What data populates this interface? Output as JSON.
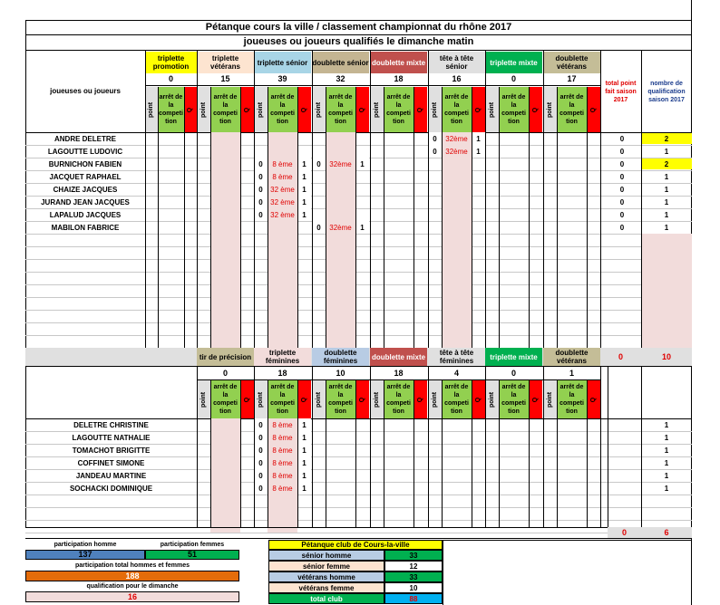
{
  "title": "Pétanque cours la ville / classement championnat du rhône 2017",
  "subtitle": "joueuses ou joueurs qualifiés le dimanche matin",
  "colors": {
    "yellow": "#ffff00",
    "peach": "#fde4d0",
    "lightblue": "#a8d5e6",
    "tan": "#c4b592",
    "brownred": "#c0504d",
    "lightgray": "#e0e0e0",
    "green": "#00b050",
    "khaki": "#c4bd97",
    "pink": "#f2dcdb",
    "limegreen": "#92d050",
    "red": "#ff0000",
    "orange": "#f79646",
    "lavender": "#b8cce4",
    "cyan": "#00b0f0",
    "blue": "#4f81bd",
    "darkorange": "#e46c0a"
  },
  "men": {
    "player_header": "joueuses ou joueurs",
    "categories": [
      {
        "name": "triplette promotion",
        "count": "0"
      },
      {
        "name": "triplette vétérans",
        "count": "15"
      },
      {
        "name": "triplette sénior",
        "count": "39"
      },
      {
        "name": "doublette sénior",
        "count": "32"
      },
      {
        "name": "doublette mixte",
        "count": "18"
      },
      {
        "name": "tête à tête sénior",
        "count": "16"
      },
      {
        "name": "triplette mixte",
        "count": "0"
      },
      {
        "name": "doublette vétérans",
        "count": "17"
      }
    ],
    "sub": {
      "point": "point",
      "arret": "arrêt de la competi tion",
      "q": "Q"
    },
    "total_header": "total point fait saison 2017",
    "qual_header": "nombre de qualification saison 2017",
    "rows": [
      {
        "name": "ANDRE DELETRE",
        "total": "0",
        "qual": "2"
      },
      {
        "name": "LAGOUTTE LUDOVIC",
        "total": "0",
        "qual": "1"
      },
      {
        "name": "BURNICHON FABIEN",
        "total": "0",
        "qual": "2"
      },
      {
        "name": "JACQUET RAPHAEL",
        "total": "0",
        "qual": "1"
      },
      {
        "name": "CHAIZE JACQUES",
        "total": "0",
        "qual": "1"
      },
      {
        "name": "JURAND JEAN JACQUES",
        "total": "0",
        "qual": "1"
      },
      {
        "name": "LAPALUD JACQUES",
        "total": "0",
        "qual": "1"
      },
      {
        "name": "MABILON FABRICE",
        "total": "0",
        "qual": "1"
      }
    ],
    "entries": [
      {
        "row": 0,
        "cat": 5,
        "point": "0",
        "arret": "32ème",
        "q": "1"
      },
      {
        "row": 1,
        "cat": 5,
        "point": "0",
        "arret": "32ème",
        "q": "1"
      },
      {
        "row": 2,
        "cat": 2,
        "point": "0",
        "arret": "8 ème",
        "q": "1"
      },
      {
        "row": 2,
        "cat": 3,
        "point": "0",
        "arret": "32ème",
        "q": "1"
      },
      {
        "row": 3,
        "cat": 2,
        "point": "0",
        "arret": "8 ème",
        "q": "1"
      },
      {
        "row": 4,
        "cat": 2,
        "point": "0",
        "arret": "32 ème",
        "q": "1"
      },
      {
        "row": 5,
        "cat": 2,
        "point": "0",
        "arret": "32 ème",
        "q": "1"
      },
      {
        "row": 6,
        "cat": 2,
        "point": "0",
        "arret": "32 ème",
        "q": "1"
      },
      {
        "row": 7,
        "cat": 3,
        "point": "0",
        "arret": "32ème",
        "q": "1"
      }
    ],
    "sum_total": "0",
    "sum_qual": "10"
  },
  "women": {
    "categories": [
      {
        "name": "tir de précision",
        "count": "0"
      },
      {
        "name": "triplette féminines",
        "count": "18"
      },
      {
        "name": "doublette féminines",
        "count": "10"
      },
      {
        "name": "doublette mixte",
        "count": "18"
      },
      {
        "name": "tête à tête féminines",
        "count": "4"
      },
      {
        "name": "triplette mixte",
        "count": "0"
      },
      {
        "name": "doublette vétérans",
        "count": "1"
      }
    ],
    "rows": [
      {
        "name": "DELETRE CHRISTINE",
        "qual": "1"
      },
      {
        "name": "LAGOUTTE NATHALIE",
        "qual": "1"
      },
      {
        "name": "TOMACHOT BRIGITTE",
        "qual": "1"
      },
      {
        "name": "COFFINET SIMONE",
        "qual": "1"
      },
      {
        "name": "JANDEAU MARTINE",
        "qual": "1"
      },
      {
        "name": "SOCHACKI DOMINIQUE",
        "qual": "1"
      }
    ],
    "entries": [
      {
        "row": 0,
        "cat": 1,
        "point": "0",
        "arret": "8 ème",
        "q": "1"
      },
      {
        "row": 1,
        "cat": 1,
        "point": "0",
        "arret": "8 ème",
        "q": "1"
      },
      {
        "row": 2,
        "cat": 1,
        "point": "0",
        "arret": "8 ème",
        "q": "1"
      },
      {
        "row": 3,
        "cat": 1,
        "point": "0",
        "arret": "8 ème",
        "q": "1"
      },
      {
        "row": 4,
        "cat": 1,
        "point": "0",
        "arret": "8 ème",
        "q": "1"
      },
      {
        "row": 5,
        "cat": 1,
        "point": "0",
        "arret": "8 ème",
        "q": "1"
      }
    ],
    "sum_total": "0",
    "sum_qual": "6"
  },
  "summary": {
    "participation_homme_label": "participation homme",
    "participation_homme": "137",
    "participation_femmes_label": "participation femmes",
    "participation_femmes": "51",
    "total_label": "participation total hommes et femmes",
    "total": "188",
    "qualif_label": "qualification pour le dimanche",
    "qualif": "16"
  },
  "club": {
    "title": "Pétanque club de Cours-la-ville",
    "rows": [
      {
        "label": "sénior homme",
        "value": "33"
      },
      {
        "label": "sénior femme",
        "value": "12"
      },
      {
        "label": "vétérans homme",
        "value": "33"
      },
      {
        "label": "vétérans femme",
        "value": "10"
      },
      {
        "label": "total club",
        "value": "88"
      }
    ]
  }
}
